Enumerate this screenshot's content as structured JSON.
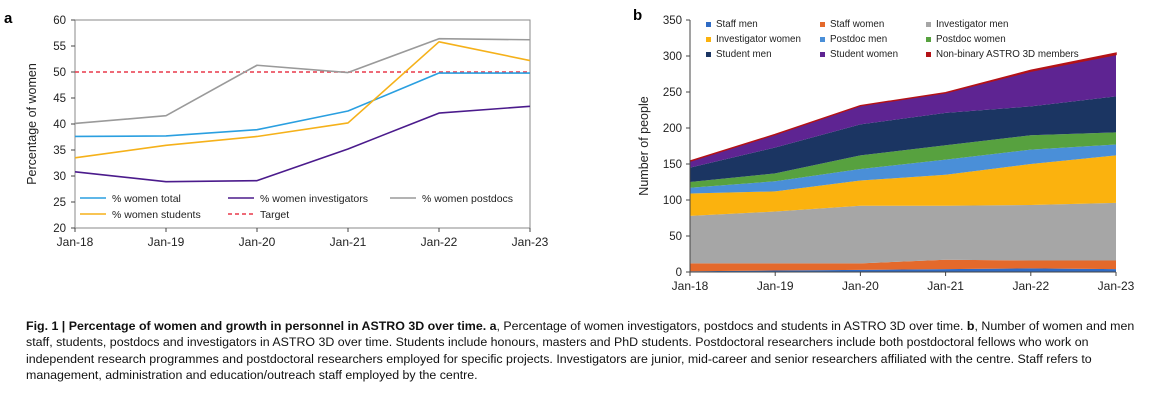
{
  "panel_labels": {
    "a": "a",
    "b": "b"
  },
  "chart_data": [
    {
      "type": "line",
      "ylabel": "Percentage of women",
      "xlabel": "",
      "x": [
        "Jan-18",
        "Jan-19",
        "Jan-20",
        "Jan-21",
        "Jan-22",
        "Jan-23"
      ],
      "ylim": [
        20,
        60
      ],
      "yticks": [
        20,
        25,
        30,
        35,
        40,
        45,
        50,
        55,
        60
      ],
      "grid": false,
      "legend_position": "bottom-inside",
      "series": [
        {
          "name": "% women total",
          "color": "#2a9fe0",
          "points": [
            [
              0,
              37.6
            ],
            [
              1,
              37.7
            ],
            [
              2,
              38.9
            ],
            [
              3,
              42.5
            ],
            [
              4,
              49.8
            ],
            [
              5,
              49.8
            ]
          ]
        },
        {
          "name": "% women investigators",
          "color": "#4b1b8c",
          "points": [
            [
              0,
              30.8
            ],
            [
              1,
              28.9
            ],
            [
              2,
              29.1
            ],
            [
              3,
              35.2
            ],
            [
              4,
              42.1
            ],
            [
              5,
              43.4
            ]
          ]
        },
        {
          "name": "% women postdocs",
          "color": "#9a9a9a",
          "points": [
            [
              0,
              40.1
            ],
            [
              1,
              41.6
            ],
            [
              2,
              51.3
            ],
            [
              3,
              49.9
            ],
            [
              4,
              56.4
            ],
            [
              5,
              56.2
            ]
          ]
        },
        {
          "name": "% women students",
          "color": "#f5b11a",
          "points": [
            [
              0,
              33.5
            ],
            [
              1,
              35.9
            ],
            [
              2,
              37.6
            ],
            [
              3,
              40.2
            ],
            [
              4,
              55.8
            ],
            [
              5,
              52.2
            ]
          ]
        }
      ],
      "target": {
        "name": "Target",
        "value": 50,
        "color": "#e8394a"
      }
    },
    {
      "type": "area",
      "stacked": true,
      "ylabel": "Number of people",
      "xlabel": "",
      "x": [
        "Jan-18",
        "Jan-19",
        "Jan-20",
        "Jan-21",
        "Jan-22",
        "Jan-23"
      ],
      "ylim": [
        0,
        350
      ],
      "yticks": [
        0,
        50,
        100,
        150,
        200,
        250,
        300,
        350
      ],
      "grid": false,
      "legend_position": "top-inside",
      "series": [
        {
          "name": "Staff men",
          "color": "#2f6bc4",
          "values": [
            1,
            2,
            3,
            4,
            5,
            4
          ]
        },
        {
          "name": "Staff women",
          "color": "#e4692b",
          "values": [
            11,
            10,
            9,
            13,
            11,
            12
          ]
        },
        {
          "name": "Investigator men",
          "color": "#a6a6a6",
          "values": [
            66,
            72,
            80,
            75,
            77,
            80
          ]
        },
        {
          "name": "Investigator women",
          "color": "#fbb20e",
          "values": [
            31,
            28,
            35,
            43,
            57,
            66
          ]
        },
        {
          "name": "Postdoc men",
          "color": "#4a8fd8",
          "values": [
            8,
            14,
            16,
            21,
            20,
            15
          ]
        },
        {
          "name": "Postdoc women",
          "color": "#57a13f",
          "values": [
            8,
            11,
            19,
            20,
            20,
            17
          ]
        },
        {
          "name": "Student men",
          "color": "#1b3562",
          "values": [
            20,
            36,
            43,
            45,
            40,
            50
          ]
        },
        {
          "name": "Student women",
          "color": "#5e2492",
          "values": [
            9,
            18,
            26,
            28,
            49,
            58
          ]
        },
        {
          "name": "Non-binary ASTRO 3D members",
          "color": "#b31217",
          "values": [
            0,
            0,
            0,
            0,
            1,
            2
          ]
        }
      ]
    }
  ],
  "caption": {
    "lead": "Fig. 1 | Percentage of women and growth in personnel in ASTRO 3D over time.",
    "part_a_label": "a",
    "part_a_text": ", Percentage of women investigators, postdocs and students in ASTRO 3D over time.",
    "part_b_label": "b",
    "part_b_text": ", Number of women and men staff, students, postdocs and investigators in ASTRO 3D over time. Students include honours, masters and PhD students. Postdoctoral researchers include both postdoctoral fellows who work on independent research programmes and postdoctoral researchers employed for specific projects. Investigators are junior, mid-career and senior researchers affiliated with the centre. Staff refers to management, administration and education/outreach staff employed by the centre."
  }
}
